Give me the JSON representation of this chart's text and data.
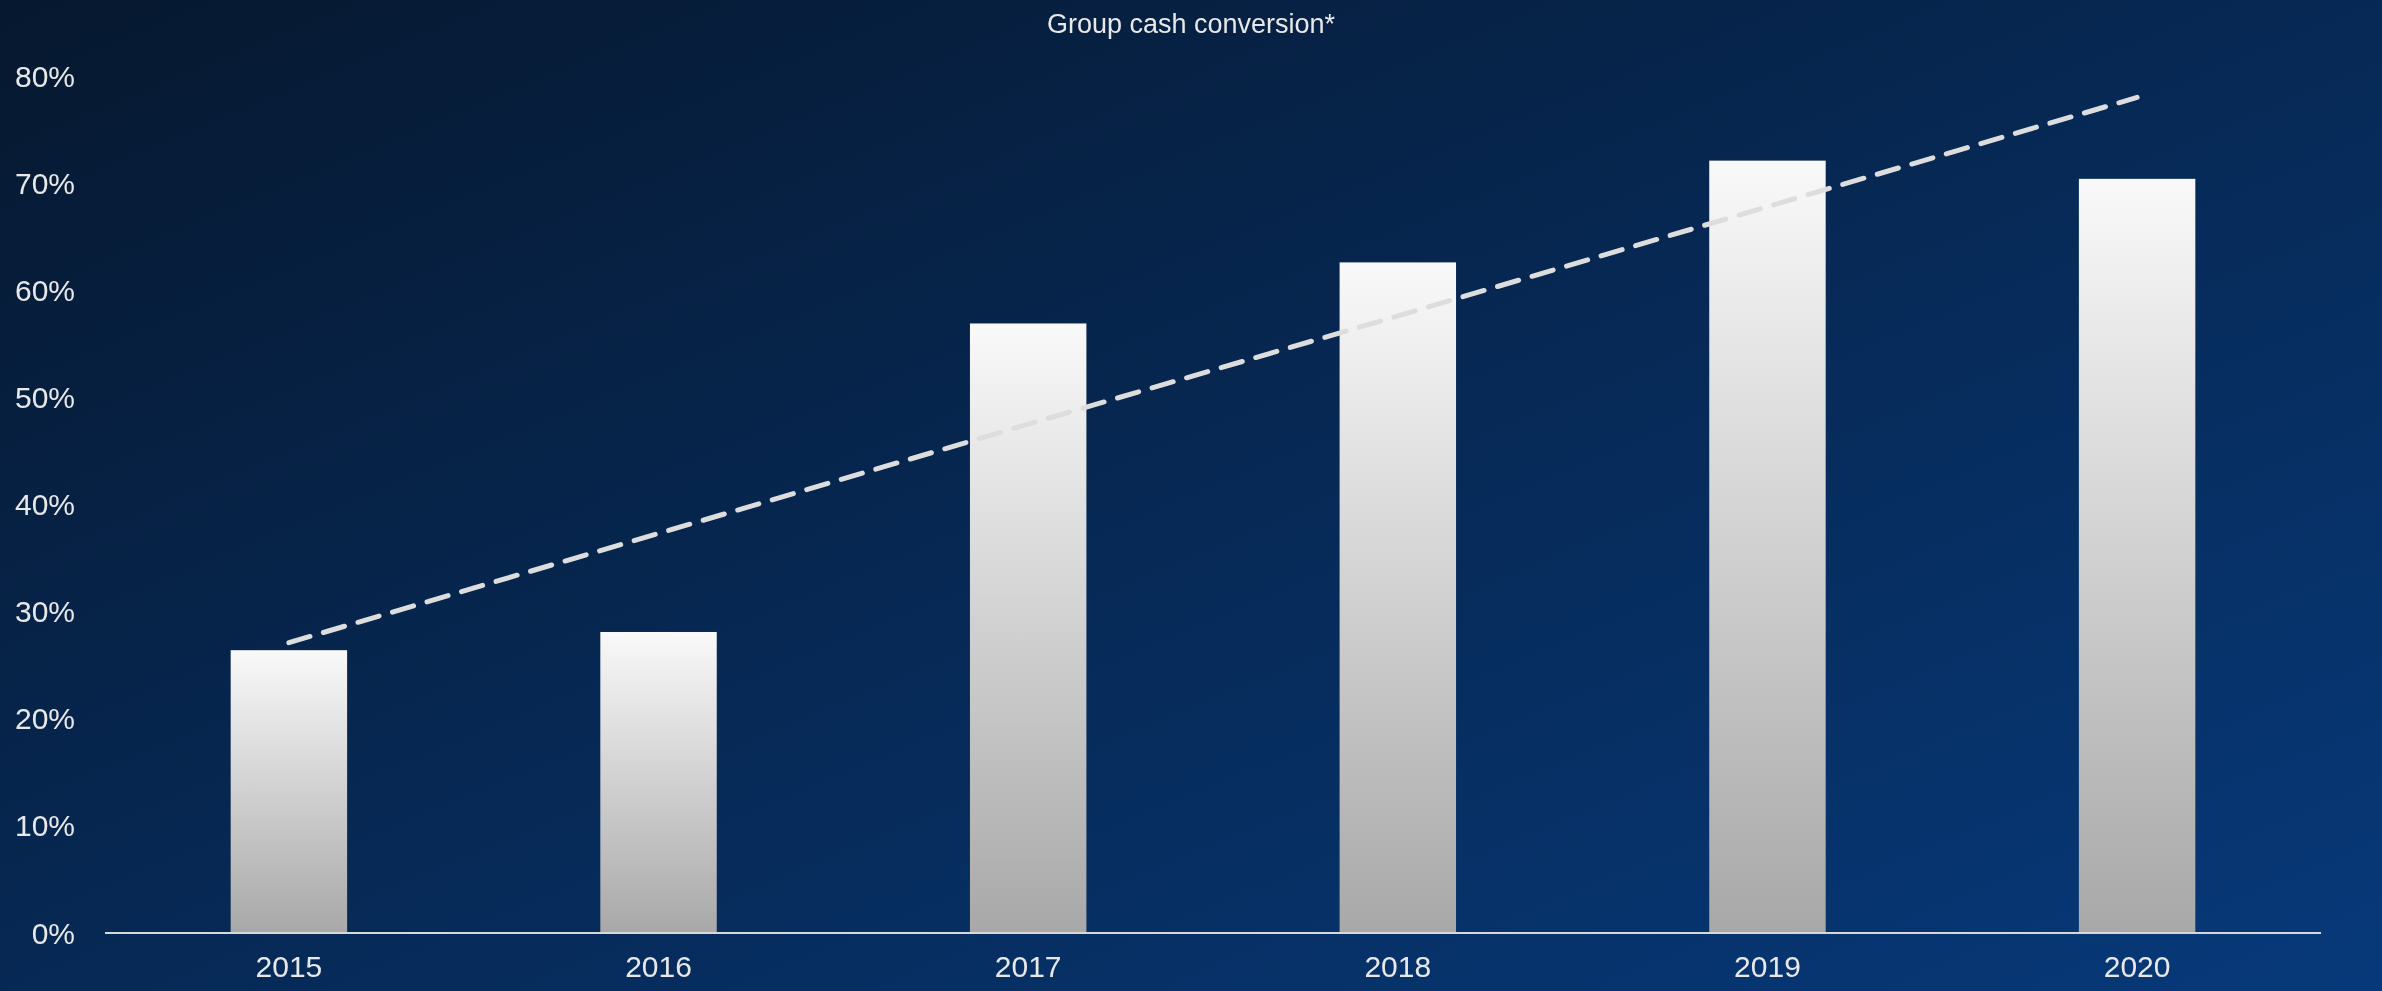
{
  "chart_data": {
    "type": "bar",
    "title": "Group cash conversion*",
    "categories": [
      "2015",
      "2016",
      "2017",
      "2018",
      "2019",
      "2020"
    ],
    "series": [
      {
        "color": "#d0d0d0",
        "values": [
          26.4,
          28.1,
          56.9,
          62.6,
          72.1,
          70.4
        ]
      },
      {
        "type": "line",
        "color": "#dddddd",
        "values": [
          27.1,
          37.3,
          47.5,
          57.6,
          67.8,
          78.0
        ],
        "line_style": "dashed",
        "marker": "none"
      }
    ],
    "ylim": [
      0,
      80
    ],
    "yticks": [
      {
        "value": 0,
        "label": "0%"
      },
      {
        "value": 10,
        "label": "10%"
      },
      {
        "value": 20,
        "label": "20%"
      },
      {
        "value": 30,
        "label": "30%"
      },
      {
        "value": 40,
        "label": "40%"
      },
      {
        "value": 50,
        "label": "50%"
      },
      {
        "value": 60,
        "label": "60%"
      },
      {
        "value": 70,
        "label": "70%"
      },
      {
        "value": 80,
        "label": "80%"
      }
    ],
    "grid": false
  }
}
